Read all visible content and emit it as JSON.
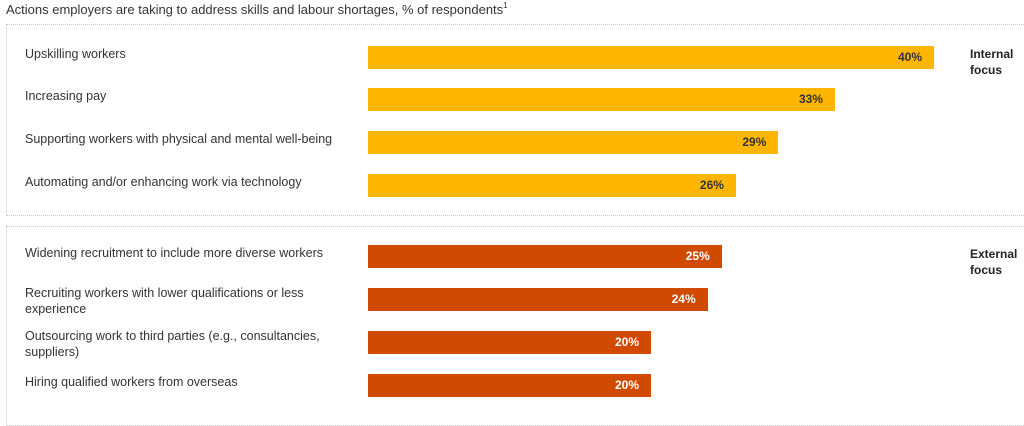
{
  "chart_data": {
    "type": "bar",
    "orientation": "horizontal",
    "title": "Actions employers are taking to address skills and labour shortages, % of respondents",
    "title_superscript": "1",
    "xlabel": "",
    "ylabel": "",
    "xlim": [
      0,
      40
    ],
    "grid": false,
    "value_suffix": "%",
    "groups": [
      {
        "name": "Internal focus",
        "label_line1": "Internal",
        "label_line2": "focus",
        "color": "#FFB600",
        "value_text_color": "#333333",
        "categories": [
          "Upskilling workers",
          "Increasing pay",
          "Supporting workers with physical and mental well-being",
          "Automating and/or enhancing work via technology"
        ],
        "values": [
          40,
          33,
          29,
          26
        ],
        "value_labels": [
          "40%",
          "33%",
          "29%",
          "26%"
        ]
      },
      {
        "name": "External focus",
        "label_line1": "External",
        "label_line2": "focus",
        "color": "#D04A02",
        "value_text_color": "#ffffff",
        "categories": [
          "Widening recruitment to include more diverse workers",
          "Recruiting workers with lower qualifications or less experience",
          "Outsourcing work to third parties (e.g., consultancies, suppliers)",
          "Hiring qualified workers from overseas"
        ],
        "values": [
          25,
          24,
          20,
          20
        ],
        "value_labels": [
          "25%",
          "24%",
          "20%",
          "20%"
        ]
      }
    ]
  }
}
